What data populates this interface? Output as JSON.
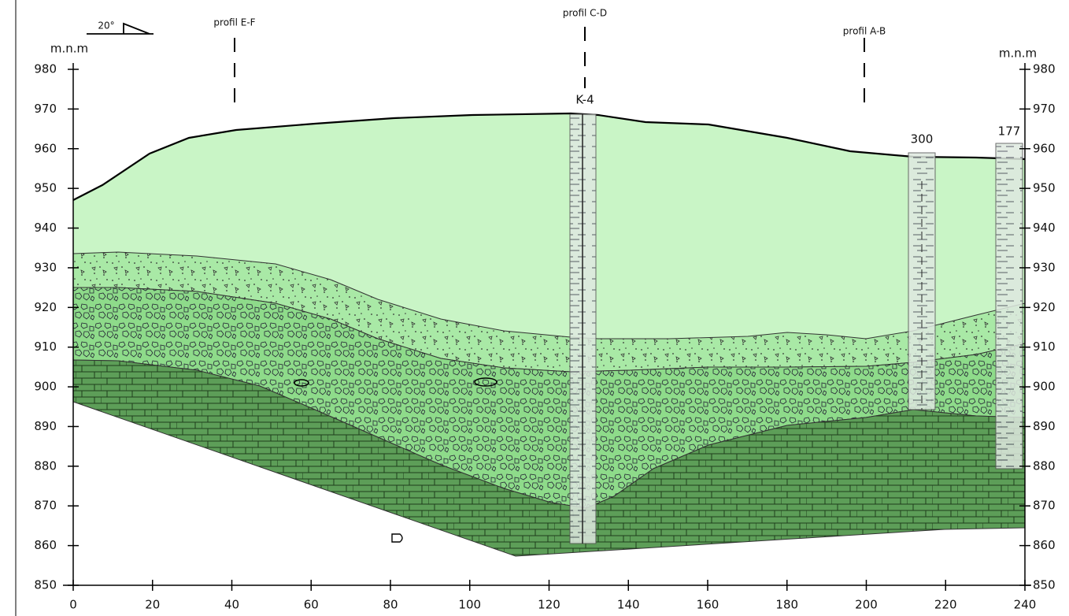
{
  "header": {
    "angle": "20°"
  },
  "axis": {
    "unit_left": "m.n.m",
    "unit_right": "m.n.m",
    "x_ticks": [
      0,
      20,
      40,
      60,
      80,
      100,
      120,
      140,
      160,
      180,
      200,
      220,
      240
    ],
    "y_ticks": [
      850,
      860,
      870,
      880,
      890,
      900,
      910,
      920,
      930,
      940,
      950,
      960,
      970,
      980
    ]
  },
  "profiles": [
    {
      "label": "profil E-F"
    },
    {
      "label": "profil C-D"
    },
    {
      "label": "profil A-B"
    }
  ],
  "boreholes": [
    {
      "label": "K-4"
    },
    {
      "label": "300"
    },
    {
      "label": "177"
    }
  ]
}
